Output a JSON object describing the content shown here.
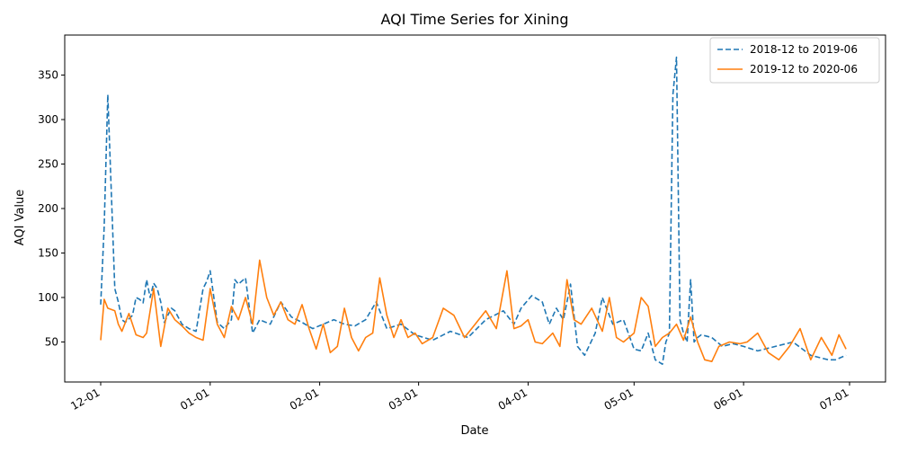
{
  "chart_data": {
    "type": "line",
    "title": "AQI Time Series for Xining",
    "xlabel": "Date",
    "ylabel": "AQI Value",
    "x_tick_labels": [
      "12-01",
      "01-01",
      "02-01",
      "03-01",
      "04-01",
      "05-01",
      "06-01",
      "07-01"
    ],
    "y_ticks": [
      50,
      100,
      150,
      200,
      250,
      300,
      350
    ],
    "ylim": [
      5,
      395
    ],
    "grid": false,
    "legend_position": "top-right",
    "series": [
      {
        "name": "2018-12 to 2019-06",
        "color": "#1f77b4",
        "linestyle": "dashed",
        "x": [
          "12-01",
          "12-02",
          "12-03",
          "12-05",
          "12-06",
          "12-07",
          "12-08",
          "12-10",
          "12-11",
          "12-12",
          "12-13",
          "12-14",
          "12-15",
          "12-16",
          "12-17",
          "12-18",
          "12-19",
          "12-20",
          "12-21",
          "12-22",
          "12-24",
          "12-26",
          "12-28",
          "12-30",
          "12-31",
          "01-01",
          "01-03",
          "01-05",
          "01-07",
          "01-08",
          "01-09",
          "01-11",
          "01-13",
          "01-15",
          "01-18",
          "01-21",
          "01-24",
          "01-27",
          "01-30",
          "02-02",
          "02-05",
          "02-08",
          "02-11",
          "02-14",
          "02-17",
          "02-20",
          "02-24",
          "02-28",
          "03-05",
          "03-10",
          "03-15",
          "03-20",
          "03-25",
          "03-28",
          "03-30",
          "04-02",
          "04-05",
          "04-07",
          "04-09",
          "04-11",
          "04-13",
          "04-15",
          "04-17",
          "04-20",
          "04-22",
          "04-25",
          "04-28",
          "05-01",
          "05-03",
          "05-05",
          "05-07",
          "05-09",
          "05-10",
          "05-11",
          "05-12",
          "05-13",
          "05-14",
          "05-15",
          "05-16",
          "05-17",
          "05-18",
          "05-19",
          "05-20",
          "05-23",
          "05-26",
          "05-29",
          "06-01",
          "06-05",
          "06-10",
          "06-15",
          "06-20",
          "06-25",
          "06-27",
          "06-30"
        ],
        "y": [
          92,
          180,
          328,
          110,
          95,
          75,
          72,
          80,
          100,
          98,
          94,
          120,
          100,
          116,
          110,
          95,
          72,
          80,
          88,
          85,
          70,
          65,
          62,
          110,
          118,
          130,
          72,
          65,
          75,
          120,
          115,
          122,
          60,
          75,
          70,
          95,
          78,
          72,
          65,
          70,
          75,
          70,
          68,
          75,
          95,
          65,
          70,
          58,
          52,
          62,
          55,
          75,
          85,
          70,
          88,
          102,
          95,
          70,
          88,
          75,
          115,
          45,
          35,
          60,
          100,
          70,
          75,
          42,
          40,
          60,
          30,
          25,
          50,
          60,
          328,
          370,
          75,
          60,
          50,
          120,
          50,
          55,
          58,
          55,
          45,
          48,
          45,
          40,
          45,
          50,
          35,
          30,
          30,
          35
        ]
      },
      {
        "name": "2019-12 to 2020-06",
        "color": "#ff7f0e",
        "linestyle": "solid",
        "x": [
          "12-01",
          "12-02",
          "12-03",
          "12-05",
          "12-06",
          "12-07",
          "12-09",
          "12-11",
          "12-13",
          "12-14",
          "12-16",
          "12-18",
          "12-20",
          "12-22",
          "12-24",
          "12-26",
          "12-28",
          "12-30",
          "01-01",
          "01-03",
          "01-05",
          "01-07",
          "01-09",
          "01-11",
          "01-13",
          "01-15",
          "01-17",
          "01-19",
          "01-21",
          "01-23",
          "01-25",
          "01-27",
          "01-29",
          "01-31",
          "02-02",
          "02-04",
          "02-06",
          "02-08",
          "02-10",
          "02-12",
          "02-14",
          "02-16",
          "02-18",
          "02-20",
          "02-22",
          "02-24",
          "02-26",
          "02-28",
          "03-02",
          "03-05",
          "03-08",
          "03-11",
          "03-14",
          "03-17",
          "03-20",
          "03-23",
          "03-26",
          "03-28",
          "03-30",
          "04-01",
          "04-03",
          "04-05",
          "04-08",
          "04-10",
          "04-12",
          "04-14",
          "04-16",
          "04-19",
          "04-22",
          "04-24",
          "04-26",
          "04-28",
          "05-01",
          "05-03",
          "05-05",
          "05-07",
          "05-09",
          "05-11",
          "05-13",
          "05-15",
          "05-17",
          "05-19",
          "05-21",
          "05-23",
          "05-25",
          "05-28",
          "05-31",
          "06-02",
          "06-05",
          "06-08",
          "06-11",
          "06-14",
          "06-17",
          "06-20",
          "06-23",
          "06-26",
          "06-28",
          "06-30"
        ],
        "y": [
          52,
          98,
          88,
          85,
          70,
          62,
          82,
          58,
          55,
          60,
          110,
          45,
          88,
          75,
          68,
          60,
          55,
          52,
          110,
          70,
          55,
          90,
          75,
          100,
          70,
          142,
          100,
          80,
          95,
          75,
          70,
          92,
          65,
          42,
          70,
          38,
          45,
          88,
          55,
          40,
          55,
          60,
          122,
          80,
          55,
          75,
          55,
          60,
          48,
          55,
          88,
          80,
          55,
          70,
          85,
          65,
          130,
          65,
          68,
          75,
          50,
          48,
          60,
          45,
          120,
          75,
          70,
          88,
          62,
          100,
          55,
          50,
          60,
          100,
          90,
          45,
          55,
          60,
          70,
          52,
          78,
          50,
          30,
          28,
          45,
          50,
          48,
          50,
          60,
          38,
          30,
          45,
          65,
          30,
          55,
          35,
          58,
          42
        ]
      }
    ]
  }
}
